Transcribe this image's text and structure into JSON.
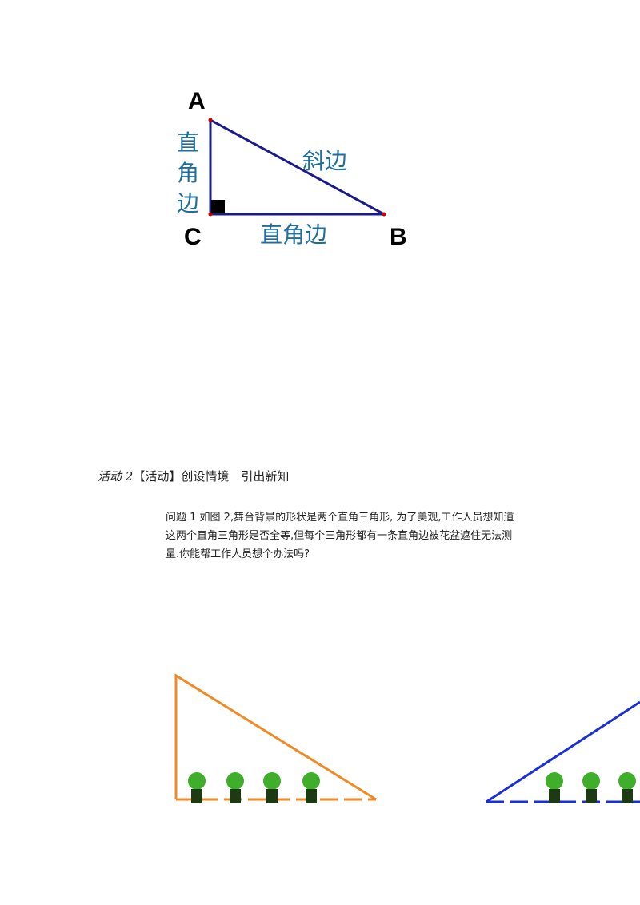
{
  "figure1": {
    "vertex_a": "A",
    "vertex_b": "B",
    "vertex_c": "C",
    "left_leg": "直角边",
    "hypotenuse": "斜边",
    "bottom_leg": "直角边"
  },
  "heading": {
    "label": "活动 2",
    "text": "【活动】创设情境　引出新知"
  },
  "problem": {
    "lines": [
      "问题 1 如图 2,舞台背景的形状是两个直角三角形, 为了美观,工作人员想知道",
      "这两个直角三角形是否全等,但每个三角形都有一条直角边被花盆遮住无法测",
      "量.你能帮工作人员想个办法吗?"
    ]
  }
}
